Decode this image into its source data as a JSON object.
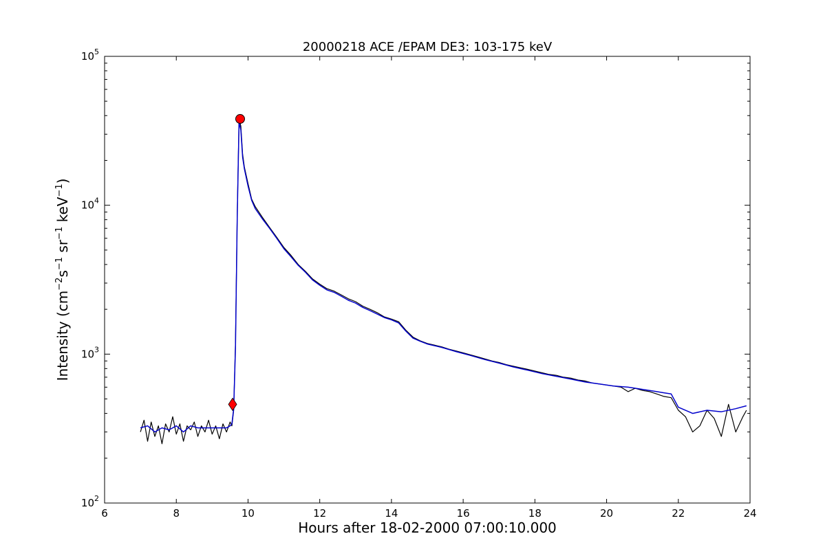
{
  "chart_data": {
    "type": "line",
    "title": "20000218 ACE /EPAM DE3: 103-175 keV",
    "xlabel": "Hours after 18-02-2000 07:00:10.000",
    "ylabel_main": "Intensity (cm",
    "ylabel_sup1": "−2",
    "ylabel_mid1": "s",
    "ylabel_sup2": "−1",
    "ylabel_mid2": " sr",
    "ylabel_sup3": "−1",
    "ylabel_mid3": " keV",
    "ylabel_sup4": "−1",
    "ylabel_end": ")",
    "xlim": [
      6,
      24
    ],
    "ylim": [
      100,
      100000
    ],
    "yscale": "log",
    "grid": false,
    "x_ticks": [
      {
        "value": 6,
        "label": "6"
      },
      {
        "value": 8,
        "label": "8"
      },
      {
        "value": 10,
        "label": "10"
      },
      {
        "value": 12,
        "label": "12"
      },
      {
        "value": 14,
        "label": "14"
      },
      {
        "value": 16,
        "label": "16"
      },
      {
        "value": 18,
        "label": "18"
      },
      {
        "value": 20,
        "label": "20"
      },
      {
        "value": 22,
        "label": "22"
      },
      {
        "value": 24,
        "label": "24"
      }
    ],
    "y_ticks": [
      {
        "value": 100,
        "base": "10",
        "exp": "2"
      },
      {
        "value": 1000,
        "base": "10",
        "exp": "3"
      },
      {
        "value": 10000,
        "base": "10",
        "exp": "4"
      },
      {
        "value": 100000,
        "base": "10",
        "exp": "5"
      }
    ],
    "series": [
      {
        "kind": "raw",
        "color": "#000000",
        "x": [
          7.0,
          7.1,
          7.2,
          7.3,
          7.4,
          7.5,
          7.6,
          7.7,
          7.8,
          7.9,
          8.0,
          8.1,
          8.2,
          8.3,
          8.4,
          8.5,
          8.6,
          8.7,
          8.8,
          8.9,
          9.0,
          9.1,
          9.2,
          9.3,
          9.4,
          9.5,
          9.55,
          9.6,
          9.65,
          9.7,
          9.75,
          9.8,
          9.85,
          9.9,
          10.0,
          10.1,
          10.2,
          10.4,
          10.6,
          10.8,
          11.0,
          11.2,
          11.4,
          11.6,
          11.8,
          12.0,
          12.2,
          12.4,
          12.6,
          12.8,
          13.0,
          13.2,
          13.4,
          13.6,
          13.8,
          14.0,
          14.2,
          14.4,
          14.6,
          14.8,
          15.0,
          15.2,
          15.4,
          15.6,
          15.8,
          16.0,
          16.2,
          16.4,
          16.6,
          16.8,
          17.0,
          17.2,
          17.4,
          17.6,
          17.8,
          18.0,
          18.2,
          18.4,
          18.6,
          18.8,
          19.0,
          19.2,
          19.4,
          19.6,
          19.8,
          20.0,
          20.2,
          20.4,
          20.6,
          20.8,
          21.0,
          21.2,
          21.4,
          21.6,
          21.8,
          22.0,
          22.2,
          22.4,
          22.6,
          22.8,
          23.0,
          23.2,
          23.4,
          23.6,
          23.8,
          23.9
        ],
        "y": [
          300,
          360,
          260,
          350,
          280,
          330,
          250,
          340,
          300,
          380,
          290,
          340,
          260,
          330,
          310,
          350,
          280,
          330,
          300,
          360,
          290,
          330,
          270,
          340,
          300,
          350,
          330,
          420,
          1200,
          9000,
          38000,
          34000,
          22000,
          18000,
          14000,
          11000,
          9800,
          8300,
          7100,
          6100,
          5200,
          4600,
          4000,
          3600,
          3200,
          2950,
          2750,
          2650,
          2500,
          2350,
          2250,
          2100,
          2000,
          1900,
          1780,
          1720,
          1650,
          1450,
          1300,
          1230,
          1180,
          1150,
          1120,
          1080,
          1050,
          1020,
          990,
          960,
          930,
          900,
          880,
          850,
          830,
          810,
          790,
          770,
          750,
          730,
          720,
          700,
          690,
          670,
          660,
          640,
          630,
          620,
          610,
          600,
          560,
          590,
          570,
          560,
          540,
          520,
          510,
          420,
          380,
          300,
          330,
          420,
          370,
          280,
          460,
          300,
          380,
          420
        ]
      },
      {
        "kind": "smoothed",
        "color": "#0000cc",
        "x": [
          7.0,
          7.2,
          7.4,
          7.6,
          7.8,
          8.0,
          8.2,
          8.4,
          8.6,
          8.8,
          9.0,
          9.2,
          9.4,
          9.5,
          9.55,
          9.6,
          9.65,
          9.7,
          9.75,
          9.8,
          9.85,
          9.9,
          10.0,
          10.1,
          10.2,
          10.4,
          10.6,
          10.8,
          11.0,
          11.2,
          11.4,
          11.6,
          11.8,
          12.0,
          12.2,
          12.4,
          12.6,
          12.8,
          13.0,
          13.2,
          13.4,
          13.6,
          13.8,
          14.0,
          14.2,
          14.4,
          14.6,
          14.8,
          15.0,
          15.4,
          15.8,
          16.2,
          16.6,
          17.0,
          17.4,
          17.8,
          18.2,
          18.6,
          19.0,
          19.4,
          19.8,
          20.2,
          20.6,
          21.0,
          21.4,
          21.6,
          21.8,
          22.0,
          22.4,
          22.8,
          23.2,
          23.6,
          23.9
        ],
        "y": [
          320,
          330,
          300,
          320,
          310,
          330,
          300,
          330,
          320,
          320,
          320,
          320,
          320,
          330,
          340,
          430,
          1100,
          8500,
          36000,
          32000,
          21000,
          17500,
          13500,
          10800,
          9500,
          8100,
          7000,
          6000,
          5100,
          4500,
          3950,
          3550,
          3150,
          2900,
          2700,
          2600,
          2450,
          2300,
          2200,
          2060,
          1960,
          1860,
          1760,
          1700,
          1620,
          1430,
          1280,
          1220,
          1170,
          1110,
          1040,
          980,
          920,
          870,
          820,
          780,
          740,
          710,
          680,
          650,
          630,
          610,
          600,
          580,
          560,
          550,
          540,
          440,
          400,
          420,
          410,
          430,
          450
        ]
      }
    ],
    "markers": [
      {
        "name": "onset",
        "shape": "diamond",
        "color": "#ff0000",
        "x": 9.57,
        "y": 460
      },
      {
        "name": "peak",
        "shape": "circle",
        "color": "#ff0000",
        "x": 9.78,
        "y": 38000
      }
    ]
  }
}
